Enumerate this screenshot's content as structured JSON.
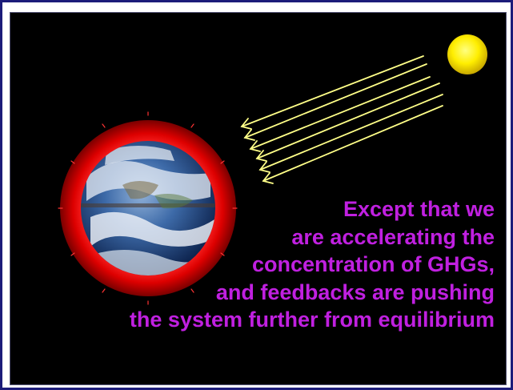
{
  "caption": {
    "lines": [
      "Except that we",
      "are accelerating the",
      "concentration of GHGs,",
      "and feedbacks are pushing",
      "the system further from equilibrium"
    ]
  },
  "colors": {
    "background": "#000000",
    "text": "#c020e0",
    "sun": "#ffee00",
    "rays": "#ffff88",
    "atmosphere": "#cc0000",
    "frame_border": "#1c1c7a"
  },
  "icons": {
    "sun": "sun-icon",
    "earth": "earth-globe-icon"
  }
}
